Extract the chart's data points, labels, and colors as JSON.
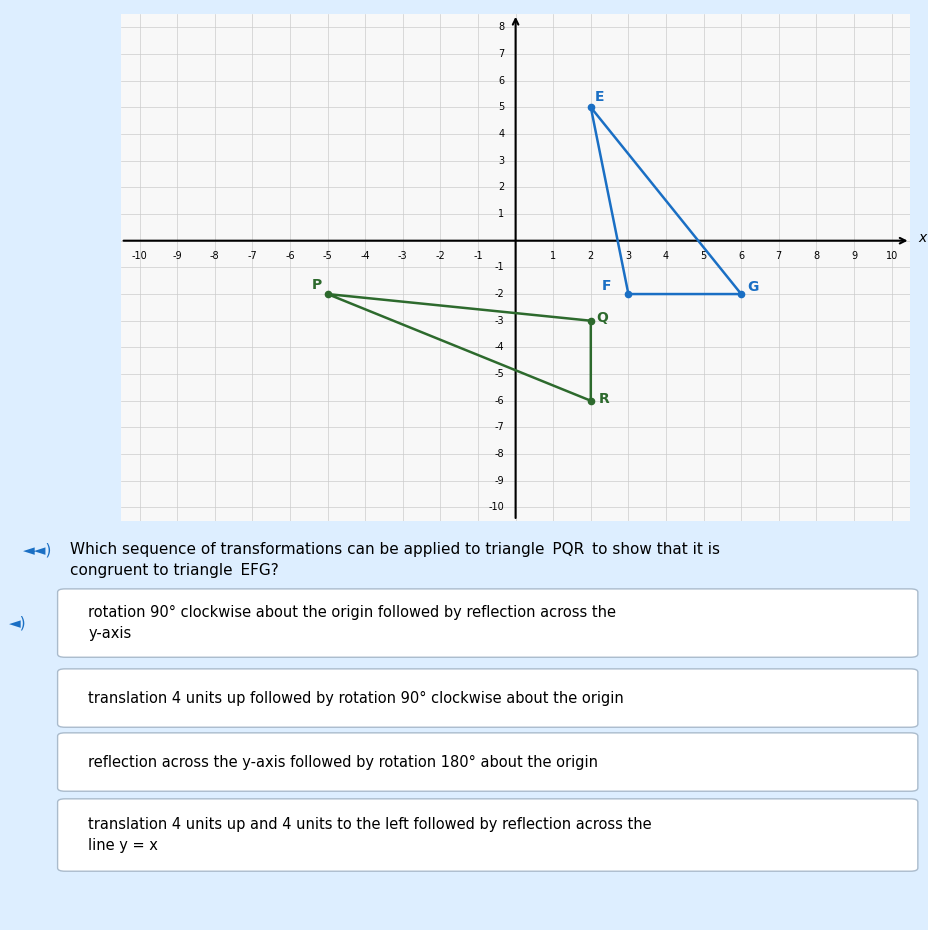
{
  "triangle_EFG": {
    "E": [
      2,
      5
    ],
    "F": [
      3,
      -2
    ],
    "G": [
      6,
      -2
    ]
  },
  "triangle_PQR": {
    "P": [
      -5,
      -2
    ],
    "Q": [
      2,
      -3
    ],
    "R": [
      2,
      -6
    ]
  },
  "efg_color": "#1a6fc4",
  "pqr_color": "#2d6a2d",
  "grid_bg": "#f8f8f8",
  "panel_bg": "#ddeeff",
  "answer_bg": "#ffffff",
  "answer_border": "#aabbcc",
  "selected_icon_color": "#1a6fc4",
  "xlim": [
    -10.5,
    10.5
  ],
  "ylim": [
    -10.5,
    8.5
  ],
  "answer_A": "rotation 90° clockwise about the origin followed by reflection across the\ny-axis",
  "answer_B": "translation 4 units up followed by rotation 90° clockwise about the origin",
  "answer_C": "reflection across the y-axis followed by rotation 180° about the origin",
  "answer_D": "translation 4 units up and 4 units to the left followed by reflection across the\nline y = x"
}
